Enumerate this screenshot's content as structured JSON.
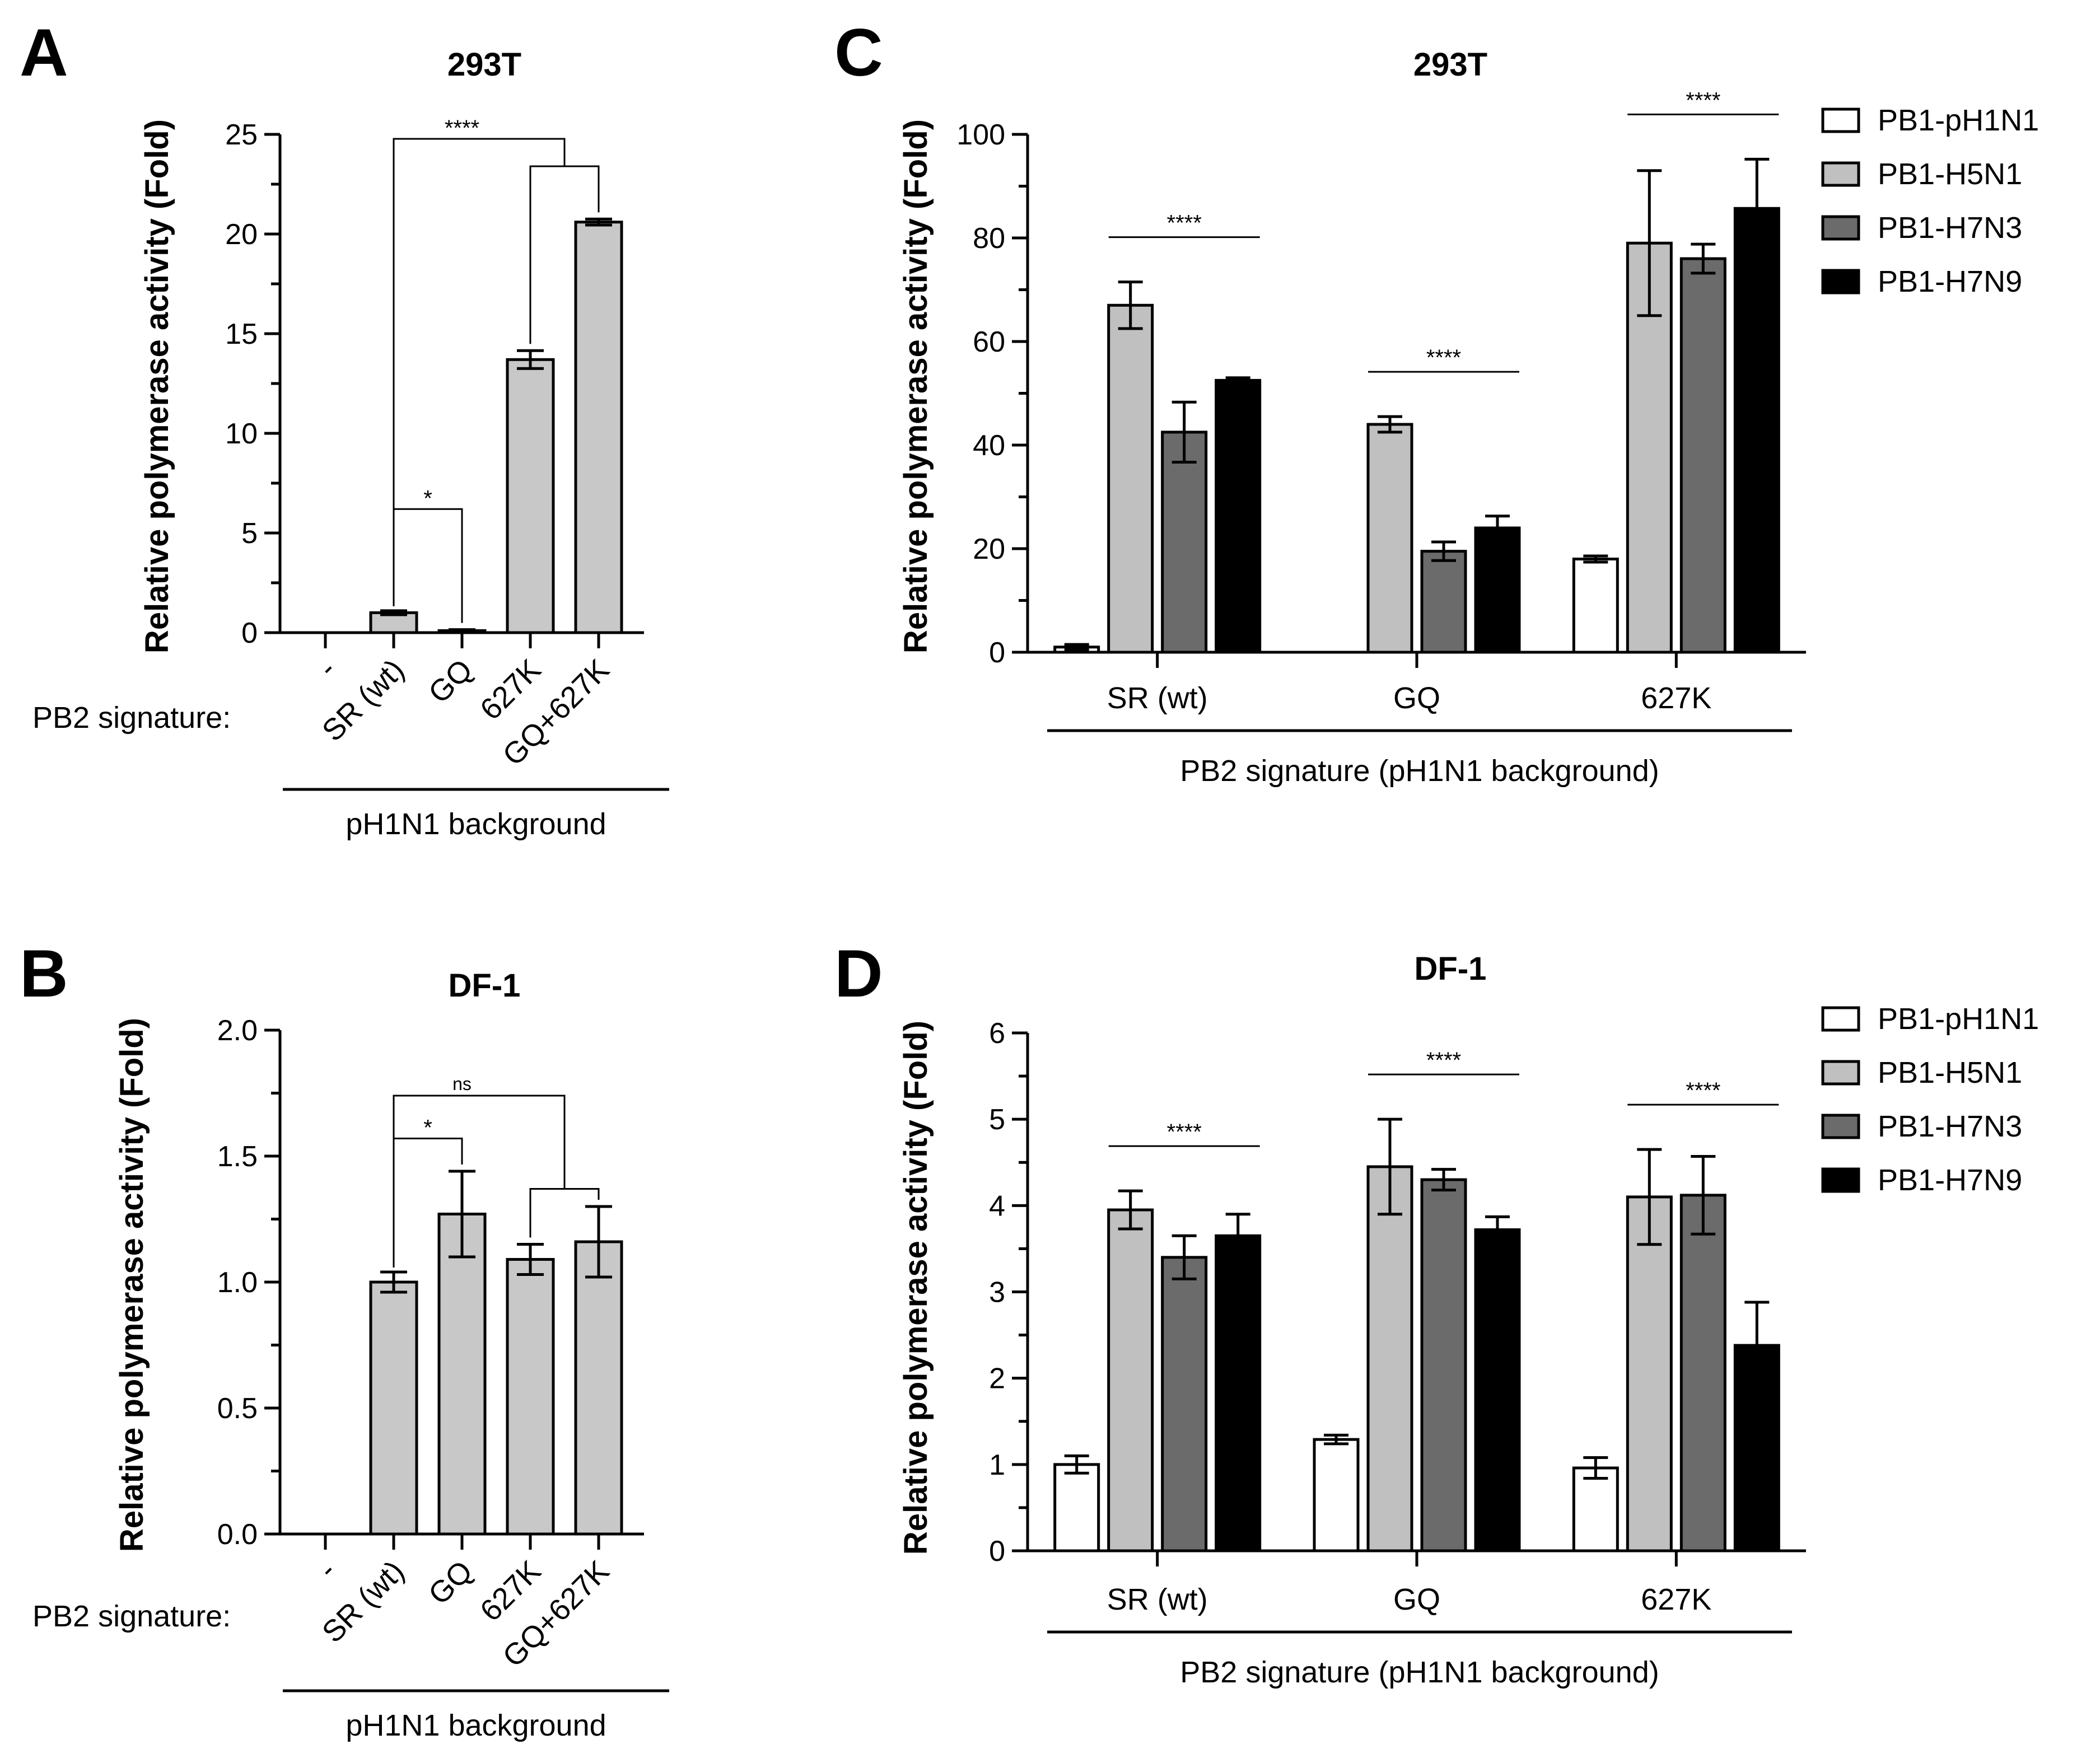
{
  "panels": [
    {
      "id": "A",
      "letter": "A",
      "title": "293T",
      "layout": "single",
      "ylabel": "Relative polymerase activity (Fold)",
      "yticks": [
        "0",
        "5",
        "10",
        "15",
        "20",
        "25"
      ],
      "row_label": "PB2 signature:",
      "group_label": "pH1N1 background",
      "chart_data": {
        "type": "bar",
        "title": "293T",
        "categories": [
          "-",
          "SR (wt)",
          "GQ",
          "627K",
          "GQ+627K"
        ],
        "values": [
          0,
          1.0,
          0.1,
          13.7,
          20.6
        ],
        "errors": [
          0,
          0.1,
          0.05,
          0.45,
          0.15
        ],
        "ylabel": "Relative polymerase activity (Fold)",
        "ylim": [
          0,
          25
        ],
        "annotations": [
          {
            "type": "bracket",
            "from": "SR (wt)",
            "to": "GQ",
            "label": "*"
          },
          {
            "type": "bracket-to-group",
            "from": "SR (wt)",
            "to": [
              "627K",
              "GQ+627K"
            ],
            "label": "****"
          }
        ]
      }
    },
    {
      "id": "B",
      "letter": "B",
      "title": "DF-1",
      "layout": "single",
      "ylabel": "Relative polymerase activity (Fold)",
      "yticks": [
        "0.0",
        "0.5",
        "1.0",
        "1.5",
        "2.0"
      ],
      "row_label": "PB2 signature:",
      "group_label": "pH1N1 background",
      "chart_data": {
        "type": "bar",
        "title": "DF-1",
        "categories": [
          "-",
          "SR (wt)",
          "GQ",
          "627K",
          "GQ+627K"
        ],
        "values": [
          0,
          1.0,
          1.27,
          1.09,
          1.16
        ],
        "errors": [
          0,
          0.04,
          0.17,
          0.06,
          0.14
        ],
        "ylabel": "Relative polymerase activity (Fold)",
        "ylim": [
          0,
          2.0
        ],
        "annotations": [
          {
            "type": "bracket",
            "from": "SR (wt)",
            "to": "GQ",
            "label": "*"
          },
          {
            "type": "bracket-to-group",
            "from": "SR (wt)",
            "to": [
              "627K",
              "GQ+627K"
            ],
            "label": "ns"
          }
        ]
      }
    },
    {
      "id": "C",
      "letter": "C",
      "title": "293T",
      "layout": "grouped",
      "ylabel": "Relative polymerase activity (Fold)",
      "yticks": [
        "0",
        "20",
        "40",
        "60",
        "80",
        "100"
      ],
      "group_label": "PB2 signature (pH1N1 background)",
      "chart_data": {
        "type": "bar",
        "title": "293T",
        "categories": [
          "SR (wt)",
          "GQ",
          "627K"
        ],
        "series": [
          {
            "name": "PB1-pH1N1",
            "color": "#ffffff",
            "values": [
              1.0,
              0,
              18.0
            ],
            "errors": [
              0.5,
              0,
              0.6
            ]
          },
          {
            "name": "PB1-H5N1",
            "color": "#c0c0c0",
            "values": [
              67.0,
              44.0,
              79.0
            ],
            "errors": [
              4.5,
              1.5,
              14.0
            ]
          },
          {
            "name": "PB1-H7N3",
            "color": "#6b6b6b",
            "values": [
              42.5,
              19.5,
              76.0
            ],
            "errors": [
              5.8,
              1.8,
              2.8
            ]
          },
          {
            "name": "PB1-H7N9",
            "color": "#000000",
            "values": [
              52.5,
              24.0,
              85.7
            ],
            "errors": [
              0.5,
              2.3,
              9.5
            ]
          }
        ],
        "ylabel": "Relative polymerase activity (Fold)",
        "ylim": [
          0,
          100
        ],
        "annotations": [
          {
            "category": "SR (wt)",
            "label": "****"
          },
          {
            "category": "GQ",
            "label": "****"
          },
          {
            "category": "627K",
            "label": "****"
          }
        ]
      }
    },
    {
      "id": "D",
      "letter": "D",
      "title": "DF-1",
      "layout": "grouped",
      "ylabel": "Relative polymerase activity (Fold)",
      "yticks": [
        "0",
        "1",
        "2",
        "3",
        "4",
        "5",
        "6"
      ],
      "group_label": "PB2 signature (pH1N1 background)",
      "chart_data": {
        "type": "bar",
        "title": "DF-1",
        "categories": [
          "SR (wt)",
          "GQ",
          "627K"
        ],
        "series": [
          {
            "name": "PB1-pH1N1",
            "color": "#ffffff",
            "values": [
              1.0,
              1.29,
              0.96
            ],
            "errors": [
              0.1,
              0.05,
              0.12
            ]
          },
          {
            "name": "PB1-H5N1",
            "color": "#c0c0c0",
            "values": [
              3.95,
              4.45,
              4.1
            ],
            "errors": [
              0.22,
              0.55,
              0.55
            ]
          },
          {
            "name": "PB1-H7N3",
            "color": "#6b6b6b",
            "values": [
              3.4,
              4.3,
              4.12
            ],
            "errors": [
              0.25,
              0.12,
              0.45
            ]
          },
          {
            "name": "PB1-H7N9",
            "color": "#000000",
            "values": [
              3.65,
              3.72,
              2.38
            ],
            "errors": [
              0.25,
              0.15,
              0.5
            ]
          }
        ],
        "ylabel": "Relative polymerase activity (Fold)",
        "ylim": [
          0,
          6
        ],
        "annotations": [
          {
            "category": "SR (wt)",
            "label": "****"
          },
          {
            "category": "GQ",
            "label": "****"
          },
          {
            "category": "627K",
            "label": "****"
          }
        ]
      }
    }
  ]
}
